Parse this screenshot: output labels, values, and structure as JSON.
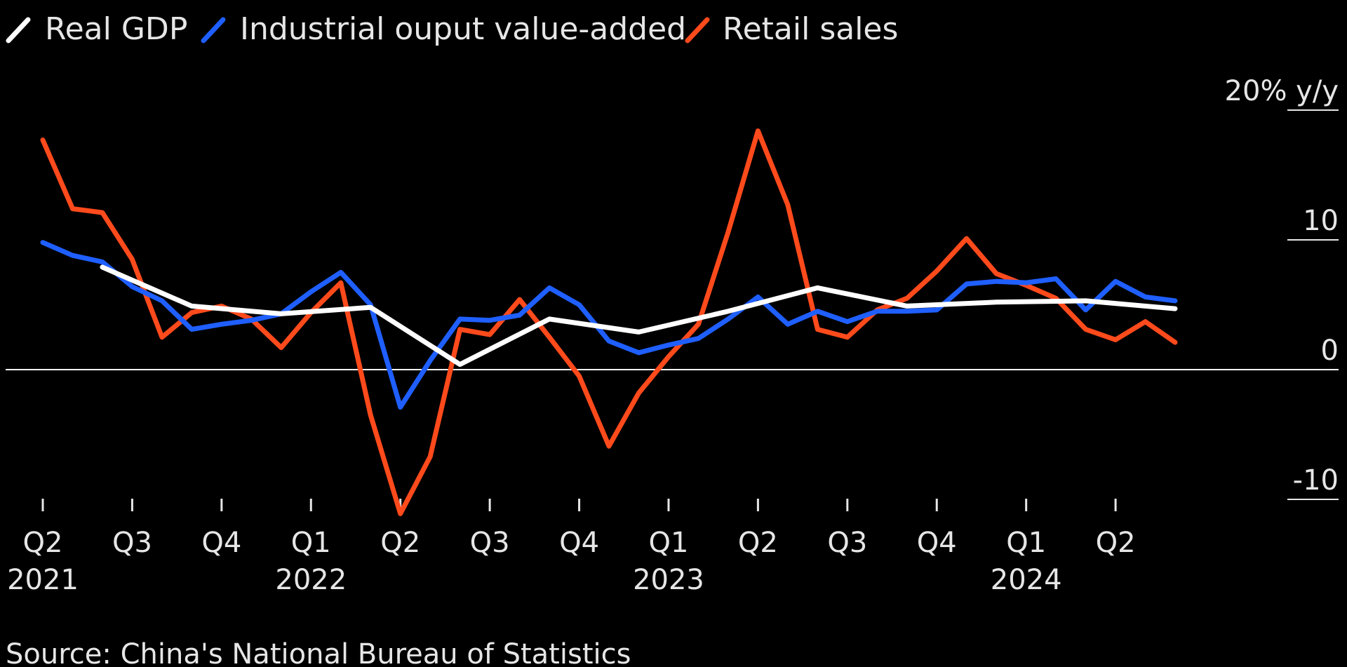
{
  "chart_data": {
    "type": "line",
    "ylabel_unit": "% y/y",
    "ylim": [
      -13,
      21
    ],
    "y_ticks": [
      {
        "value": 20,
        "label": "20% y/y"
      },
      {
        "value": 10,
        "label": "10"
      },
      {
        "value": 0,
        "label": "0"
      },
      {
        "value": -10,
        "label": "-10"
      }
    ],
    "x_range": [
      0,
      40
    ],
    "x_ticks": [
      {
        "x": 0,
        "label": "Q2",
        "year": "2021"
      },
      {
        "x": 3,
        "label": "Q3",
        "year": ""
      },
      {
        "x": 6,
        "label": "Q4",
        "year": ""
      },
      {
        "x": 9,
        "label": "Q1",
        "year": "2022"
      },
      {
        "x": 12,
        "label": "Q2",
        "year": ""
      },
      {
        "x": 15,
        "label": "Q3",
        "year": ""
      },
      {
        "x": 18,
        "label": "Q4",
        "year": ""
      },
      {
        "x": 21,
        "label": "Q1",
        "year": "2023"
      },
      {
        "x": 24,
        "label": "Q2",
        "year": ""
      },
      {
        "x": 27,
        "label": "Q3",
        "year": ""
      },
      {
        "x": 30,
        "label": "Q4",
        "year": ""
      },
      {
        "x": 33,
        "label": "Q1",
        "year": "2024"
      },
      {
        "x": 36,
        "label": "Q2",
        "year": ""
      }
    ],
    "series": [
      {
        "name": "Real GDP",
        "color": "#ffffff",
        "x": [
          2,
          5,
          8,
          11,
          14,
          17,
          20,
          23,
          26,
          29,
          32,
          35,
          38
        ],
        "values": [
          7.9,
          4.9,
          4.3,
          4.8,
          0.4,
          3.9,
          2.9,
          4.5,
          6.3,
          4.9,
          5.2,
          5.3,
          4.7
        ]
      },
      {
        "name": "Industrial ouput value-added",
        "color": "#1f5fff",
        "x": [
          0,
          1,
          2,
          3,
          4,
          5,
          6,
          7,
          8,
          9,
          10,
          11,
          12,
          13,
          14,
          15,
          16,
          17,
          18,
          19,
          20,
          21,
          22,
          23,
          24,
          25,
          26,
          27,
          28,
          29,
          30,
          31,
          32,
          33,
          34,
          35,
          36,
          37,
          38
        ],
        "values": [
          9.8,
          8.8,
          8.3,
          6.4,
          5.3,
          3.1,
          3.5,
          3.8,
          4.3,
          6.0,
          7.5,
          5.0,
          -2.9,
          0.7,
          3.9,
          3.8,
          4.2,
          6.3,
          5.0,
          2.2,
          1.3,
          1.9,
          2.4,
          3.9,
          5.6,
          3.5,
          4.5,
          3.7,
          4.5,
          4.5,
          4.6,
          6.6,
          6.8,
          6.7,
          7.0,
          4.6,
          6.8,
          5.6,
          5.3
        ]
      },
      {
        "name": "Retail sales",
        "color": "#ff4a1c",
        "x": [
          0,
          1,
          2,
          3,
          4,
          5,
          6,
          7,
          8,
          9,
          10,
          11,
          12,
          13,
          14,
          15,
          16,
          17,
          18,
          19,
          20,
          21,
          22,
          23,
          24,
          25,
          26,
          27,
          28,
          29,
          30,
          31,
          32,
          33,
          34,
          35,
          36,
          37,
          38
        ],
        "values": [
          17.7,
          12.4,
          12.1,
          8.5,
          2.5,
          4.4,
          4.9,
          3.9,
          1.7,
          4.4,
          6.7,
          -3.5,
          -11.1,
          -6.7,
          3.1,
          2.7,
          5.4,
          2.5,
          -0.5,
          -5.9,
          -1.8,
          1.0,
          3.5,
          10.6,
          18.4,
          12.7,
          3.1,
          2.5,
          4.6,
          5.5,
          7.6,
          10.1,
          7.4,
          6.5,
          5.5,
          3.1,
          2.3,
          3.7,
          2.1
        ]
      }
    ],
    "source": "Source: China's National Bureau of Statistics"
  }
}
